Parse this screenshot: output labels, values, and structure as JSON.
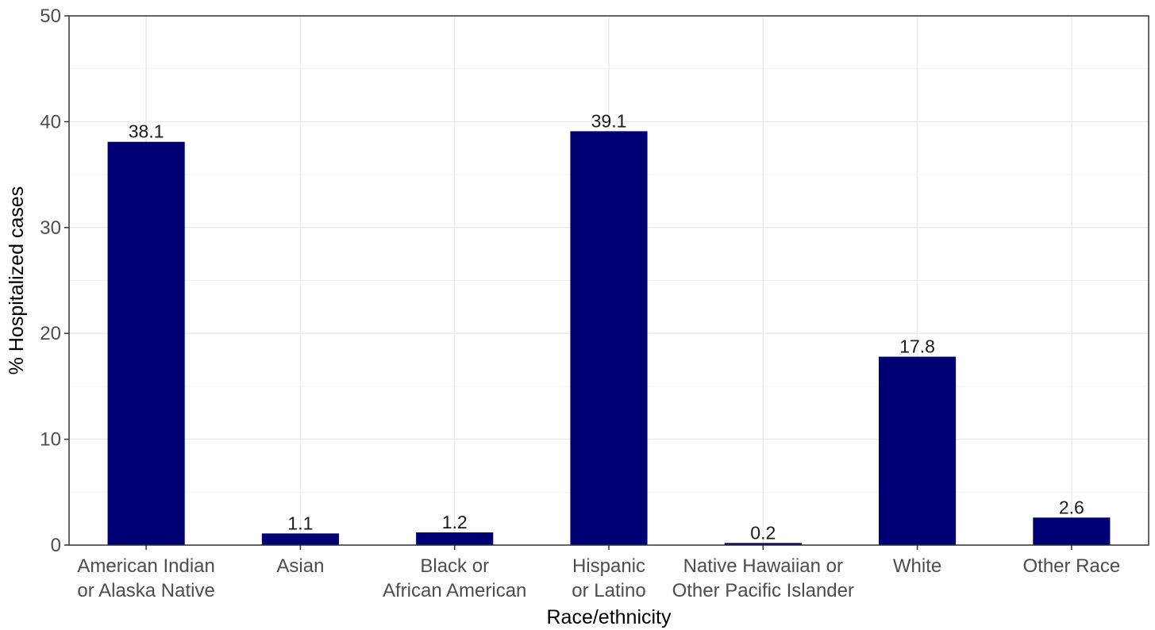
{
  "chart_data": {
    "type": "bar",
    "title": "",
    "xlabel": "Race/ethnicity",
    "ylabel": "% Hospitalized cases",
    "ylim": [
      0,
      50
    ],
    "yticks": [
      0,
      10,
      20,
      30,
      40,
      50
    ],
    "grid": true,
    "legend": "none",
    "bar_color": "#000075",
    "categories": [
      [
        "American Indian",
        "or Alaska Native"
      ],
      [
        "Asian"
      ],
      [
        "Black or",
        "African American"
      ],
      [
        "Hispanic",
        "or Latino"
      ],
      [
        "Native Hawaiian or",
        "Other Pacific Islander"
      ],
      [
        "White"
      ],
      [
        "Other Race"
      ]
    ],
    "values": [
      38.1,
      1.1,
      1.2,
      39.1,
      0.2,
      17.8,
      2.6
    ],
    "value_labels": [
      "38.1",
      "1.1",
      "1.2",
      "39.1",
      "0.2",
      "17.8",
      "2.6"
    ]
  }
}
